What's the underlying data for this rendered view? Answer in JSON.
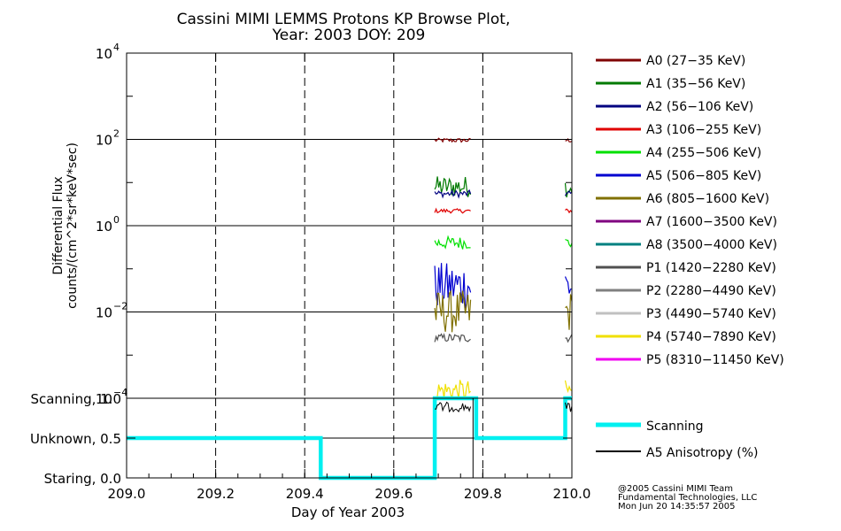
{
  "title_line1": "Cassini MIMI LEMMS Protons KP Browse Plot,",
  "title_line2": "Year: 2003 DOY: 209",
  "credits": [
    "@2005 Cassini MIMI Team",
    "Fundamental Technologies, LLC",
    "Mon Jun 20 14:35:57 2005"
  ],
  "chart_data": [
    {
      "type": "line",
      "title": "Cassini MIMI LEMMS Protons KP Browse Plot, Year: 2003 DOY: 209",
      "ylabel_line1": "Differential Flux",
      "ylabel_line2": "counts/(cm^2*sr*keV*sec)",
      "yscale": "log",
      "ylim": [
        0.0001,
        10000
      ],
      "xlim": [
        209.0,
        210.0
      ],
      "grid": true,
      "yticks": [
        {
          "value": 0.0001,
          "base": "10",
          "exp": "−4"
        },
        {
          "value": 0.01,
          "base": "10",
          "exp": "−2"
        },
        {
          "value": 1,
          "base": "10",
          "exp": "0"
        },
        {
          "value": 100,
          "base": "10",
          "exp": "2"
        },
        {
          "value": 10000,
          "base": "10",
          "exp": "4"
        }
      ],
      "legend_position": "right",
      "segments": [
        [
          209.692,
          209.775
        ],
        [
          209.985,
          210.0
        ]
      ],
      "series": [
        {
          "name": "A0 (27−35 KeV)",
          "color": "#800000",
          "level": 95,
          "jitter": 0.05
        },
        {
          "name": "A1 (35−56 KeV)",
          "color": "#007a00",
          "level": 8,
          "jitter": 0.25
        },
        {
          "name": "A2 (56−106 KeV)",
          "color": "#000080",
          "level": 5.5,
          "jitter": 0.08
        },
        {
          "name": "A3 (106−255 KeV)",
          "color": "#e00000",
          "level": 2.2,
          "jitter": 0.05
        },
        {
          "name": "A4 (255−506 KeV)",
          "color": "#00e000",
          "level": 0.4,
          "jitter": 0.15
        },
        {
          "name": "A5 (506−805 KeV)",
          "color": "#0000d0",
          "level": 0.04,
          "jitter": 0.55
        },
        {
          "name": "A6 (805−1600 KeV)",
          "color": "#807000",
          "level": 0.01,
          "jitter": 0.5
        },
        {
          "name": "A7 (1600−3500 KeV)",
          "color": "#800080",
          "level": null,
          "jitter": 0
        },
        {
          "name": "A8 (3500−4000 KeV)",
          "color": "#008080",
          "level": null,
          "jitter": 0
        },
        {
          "name": "P1 (1420−2280 KeV)",
          "color": "#505050",
          "level": 0.0025,
          "jitter": 0.1
        },
        {
          "name": "P2 (2280−4490 KeV)",
          "color": "#808080",
          "level": null,
          "jitter": 0
        },
        {
          "name": "P3 (4490−5740 KeV)",
          "color": "#c0c0c0",
          "level": null,
          "jitter": 0
        },
        {
          "name": "P4 (5740−7890 KeV)",
          "color": "#f0e000",
          "level": 0.00015,
          "jitter": 0.25
        },
        {
          "name": "P5 (8310−11450 KeV)",
          "color": "#f000f0",
          "level": null,
          "jitter": 0
        }
      ]
    },
    {
      "type": "line",
      "xlabel": "Day of Year 2003",
      "xticks": [
        "209.0",
        "209.2",
        "209.4",
        "209.6",
        "209.8",
        "210.0"
      ],
      "xtick_values": [
        209.0,
        209.2,
        209.4,
        209.6,
        209.8,
        210.0
      ],
      "xlim": [
        209.0,
        210.0
      ],
      "ylim": [
        0,
        1
      ],
      "yticks": [
        {
          "value": 1.0,
          "label": "Scanning, 1.0"
        },
        {
          "value": 0.5,
          "label": "Unknown, 0.5"
        },
        {
          "value": 0.0,
          "label": "Staring, 0.0"
        }
      ],
      "series": [
        {
          "name": "Scanning",
          "color": "#00f0f0",
          "x": [
            209.0,
            209.436,
            209.436,
            209.692,
            209.692,
            209.785,
            209.785,
            209.985,
            209.985,
            210.0
          ],
          "y": [
            0.5,
            0.5,
            0.0,
            0.0,
            1.0,
            1.0,
            0.5,
            0.5,
            1.0,
            1.0
          ]
        },
        {
          "name": "A5 Anisotropy (%)",
          "color": "#000000",
          "segments": [
            [
              209.692,
              209.775
            ],
            [
              209.985,
              210.0
            ]
          ],
          "level": 0.95
        }
      ]
    }
  ]
}
